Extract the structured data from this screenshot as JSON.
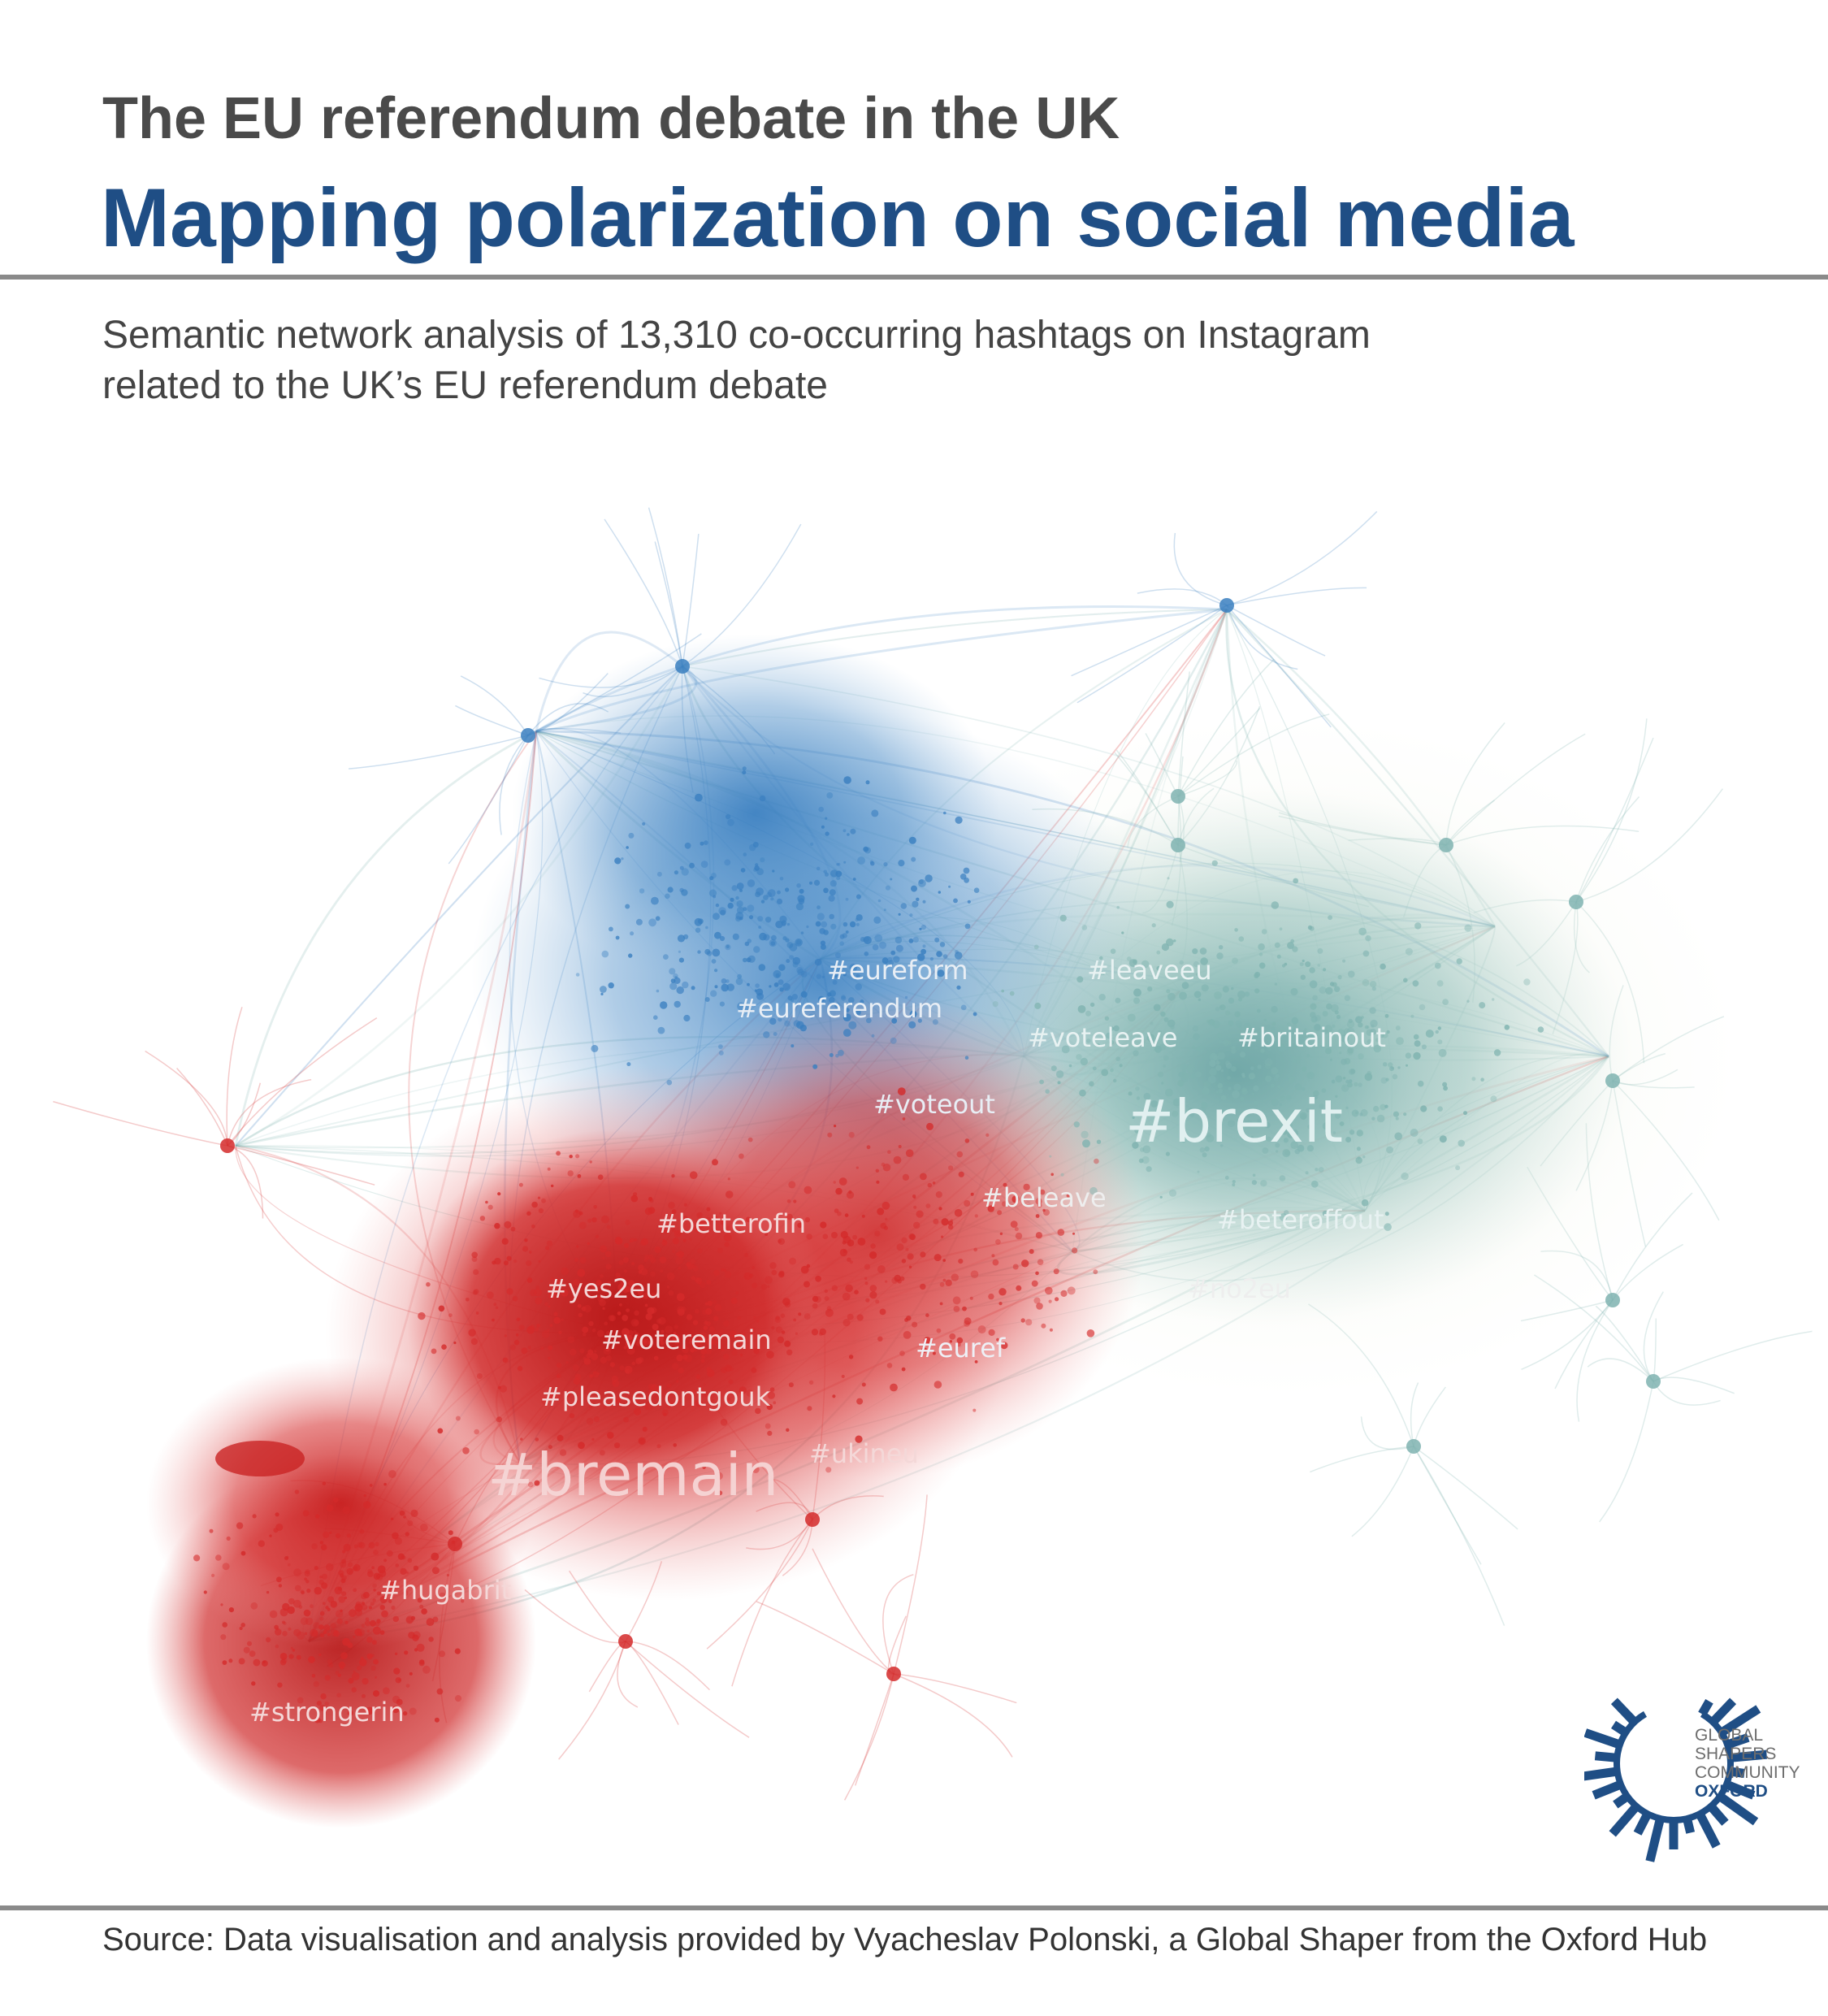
{
  "header": {
    "kicker": "The EU referendum debate in the UK",
    "title": "Mapping polarization on social media"
  },
  "subtitle": {
    "line1": "Semantic network analysis of 13,310 co-occurring hashtags on Instagram",
    "line2": "related to the UK’s EU referendum debate"
  },
  "network": {
    "colors": {
      "remain": "#d42a2a",
      "eu_blue": "#3a7fc0",
      "leave": "#7fb3b0",
      "pale": "#dce8cf"
    },
    "labels": [
      {
        "text": "#brexit",
        "tier": "large"
      },
      {
        "text": "#bremain",
        "tier": "large"
      },
      {
        "text": "#eureform",
        "tier": "small"
      },
      {
        "text": "#leaveeu",
        "tier": "small"
      },
      {
        "text": "#eureferendum",
        "tier": "small"
      },
      {
        "text": "#voteleave",
        "tier": "small"
      },
      {
        "text": "#britainout",
        "tier": "small"
      },
      {
        "text": "#voteout",
        "tier": "small"
      },
      {
        "text": "#beleave",
        "tier": "small"
      },
      {
        "text": "#beteroffout",
        "tier": "small"
      },
      {
        "text": "#betterofin",
        "tier": "small"
      },
      {
        "text": "#yes2eu",
        "tier": "small"
      },
      {
        "text": "#no2eu",
        "tier": "small"
      },
      {
        "text": "#voteremain",
        "tier": "small"
      },
      {
        "text": "#euref",
        "tier": "small"
      },
      {
        "text": "#pleasedontgouk",
        "tier": "small"
      },
      {
        "text": "#ukineu",
        "tier": "small"
      },
      {
        "text": "#hugabrit",
        "tier": "small"
      },
      {
        "text": "#strongerin",
        "tier": "small"
      }
    ]
  },
  "logo": {
    "lines": [
      "GLOBAL",
      "SHAPERS",
      "COMMUNITY"
    ],
    "hub": "OXFORD",
    "color": "#1f4e85"
  },
  "footer": {
    "source": "Source: Data visualisation and analysis provided by Vyacheslav Polonski, a Global Shaper from the Oxford Hub"
  }
}
